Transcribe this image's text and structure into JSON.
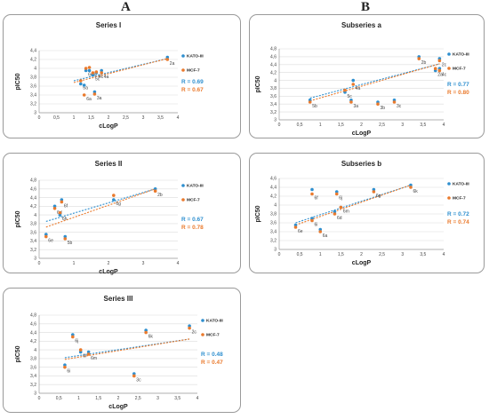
{
  "columns": {
    "left": "A",
    "right": "B"
  },
  "colors": {
    "kato": "#2e8fcf",
    "mcf": "#ea7a2d"
  },
  "legend": {
    "kato": "KATO-III",
    "mcf": "MCF-7"
  },
  "chart_data": [
    {
      "type": "scatter",
      "title": "Series I",
      "xlabel": "cLogP",
      "ylabel": "pIC50",
      "xlim": [
        0,
        4
      ],
      "ylim": [
        3,
        4.4
      ],
      "xticks": [
        "0",
        "0,5",
        "1",
        "1,5",
        "2",
        "2,5",
        "3",
        "3,5",
        "4"
      ],
      "yticks": [
        "3",
        "3,2",
        "3,4",
        "3,6",
        "3,8",
        "4",
        "4,2",
        "4,4"
      ],
      "r_kato": "R = 0.69",
      "r_mcf": "R = 0.67",
      "points": [
        {
          "label": "2a",
          "x": 3.7,
          "kato": 4.25,
          "mcf": 4.2
        },
        {
          "label": "4a",
          "x": 1.8,
          "kato": 3.95,
          "mcf": 3.9
        },
        {
          "label": "6d",
          "x": 1.35,
          "kato": 3.95,
          "mcf": 4.0
        },
        {
          "label": "5d",
          "x": 1.45,
          "kato": 3.95,
          "mcf": 4.02
        },
        {
          "label": "5c",
          "x": 1.55,
          "kato": 3.85,
          "mcf": 3.9
        },
        {
          "label": "4c",
          "x": 1.65,
          "kato": 3.9,
          "mcf": 3.92
        },
        {
          "label": "5a",
          "x": 1.2,
          "kato": 3.65,
          "mcf": 3.72
        },
        {
          "label": "6a",
          "x": 1.3,
          "kato": 3.62,
          "mcf": 3.4
        },
        {
          "label": "3a",
          "x": 1.6,
          "kato": 3.47,
          "mcf": 3.42
        }
      ],
      "trend_kato": [
        [
          1.0,
          3.72
        ],
        [
          3.7,
          4.22
        ]
      ],
      "trend_mcf": [
        [
          1.0,
          3.68
        ],
        [
          3.7,
          4.22
        ]
      ]
    },
    {
      "type": "scatter",
      "title": "Series II",
      "xlabel": "cLogP",
      "ylabel": "pIC50",
      "xlim": [
        0,
        4
      ],
      "ylim": [
        3,
        4.8
      ],
      "xticks": [
        "0",
        "1",
        "2",
        "3",
        "4"
      ],
      "yticks": [
        "3",
        "3,2",
        "3,4",
        "3,6",
        "3,8",
        "4",
        "4,2",
        "4,4",
        "4,6",
        "4,8"
      ],
      "r_kato": "R = 0.67",
      "r_mcf": "R = 0.78",
      "points": [
        {
          "label": "2b",
          "x": 3.35,
          "kato": 4.6,
          "mcf": 4.55
        },
        {
          "label": "6g",
          "x": 2.15,
          "kato": 4.35,
          "mcf": 4.45
        },
        {
          "label": "6f",
          "x": 0.65,
          "kato": 4.35,
          "mcf": 4.3
        },
        {
          "label": "6d",
          "x": 0.45,
          "kato": 4.2,
          "mcf": 4.15
        },
        {
          "label": "6h",
          "x": 0.6,
          "kato": 4.0,
          "mcf": 4.05
        },
        {
          "label": "6e",
          "x": 0.2,
          "kato": 3.55,
          "mcf": 3.5
        },
        {
          "label": "5b",
          "x": 0.75,
          "kato": 3.5,
          "mcf": 3.45
        }
      ],
      "trend_kato": [
        [
          0.2,
          3.85
        ],
        [
          3.35,
          4.6
        ]
      ],
      "trend_mcf": [
        [
          0.2,
          3.72
        ],
        [
          3.35,
          4.6
        ]
      ]
    },
    {
      "type": "scatter",
      "title": "Series III",
      "xlabel": "cLogP",
      "ylabel": "pIC50",
      "xlim": [
        0,
        4
      ],
      "ylim": [
        3,
        4.8
      ],
      "xticks": [
        "0",
        "0,5",
        "1",
        "1,5",
        "2",
        "2,5",
        "3",
        "3,5",
        "4"
      ],
      "yticks": [
        "3",
        "3,2",
        "3,4",
        "3,6",
        "3,8",
        "4",
        "4,2",
        "4,4",
        "4,6",
        "4,8"
      ],
      "r_kato": "R = 0.48",
      "r_mcf": "R = 0.47",
      "points": [
        {
          "label": "2c",
          "x": 3.8,
          "kato": 4.55,
          "mcf": 4.5
        },
        {
          "label": "6k",
          "x": 2.7,
          "kato": 4.45,
          "mcf": 4.4
        },
        {
          "label": "6j",
          "x": 0.85,
          "kato": 4.35,
          "mcf": 4.3
        },
        {
          "label": "6l",
          "x": 1.05,
          "kato": 3.95,
          "mcf": 4.0
        },
        {
          "label": "6m",
          "x": 1.25,
          "kato": 3.95,
          "mcf": 3.9
        },
        {
          "label": "6i",
          "x": 0.65,
          "kato": 3.65,
          "mcf": 3.6
        },
        {
          "label": "3c",
          "x": 2.4,
          "kato": 3.45,
          "mcf": 3.4
        }
      ],
      "trend_kato": [
        [
          0.65,
          3.82
        ],
        [
          3.8,
          4.25
        ]
      ],
      "trend_mcf": [
        [
          0.65,
          3.78
        ],
        [
          3.8,
          4.25
        ]
      ]
    },
    {
      "type": "scatter",
      "title": "Subseries a",
      "xlabel": "cLogP",
      "ylabel": "pIC50",
      "xlim": [
        0,
        4
      ],
      "ylim": [
        3,
        4.8
      ],
      "xticks": [
        "0",
        "0,5",
        "1",
        "1,5",
        "2",
        "2,5",
        "3",
        "3,5",
        "4"
      ],
      "yticks": [
        "3",
        "3,2",
        "3,4",
        "3,6",
        "3,8",
        "4",
        "4,2",
        "4,4",
        "4,6",
        "4,8"
      ],
      "r_kato": "R = 0.77",
      "r_mcf": "R = 0.80",
      "points": [
        {
          "label": "2c",
          "x": 3.9,
          "kato": 4.55,
          "mcf": 4.5
        },
        {
          "label": "2b",
          "x": 3.4,
          "kato": 4.6,
          "mcf": 4.55
        },
        {
          "label": "2a",
          "x": 3.8,
          "kato": 4.25,
          "mcf": 4.3
        },
        {
          "label": "4c",
          "x": 3.9,
          "kato": 4.3,
          "mcf": 4.25
        },
        {
          "label": "4a",
          "x": 1.8,
          "kato": 4.0,
          "mcf": 3.9
        },
        {
          "label": "5c",
          "x": 1.6,
          "kato": 3.7,
          "mcf": 3.75
        },
        {
          "label": "5b",
          "x": 0.75,
          "kato": 3.5,
          "mcf": 3.45
        },
        {
          "label": "3a",
          "x": 1.75,
          "kato": 3.5,
          "mcf": 3.45
        },
        {
          "label": "3b",
          "x": 2.4,
          "kato": 3.45,
          "mcf": 3.4
        },
        {
          "label": "3c",
          "x": 2.8,
          "kato": 3.5,
          "mcf": 3.45
        }
      ],
      "trend_kato": [
        [
          0.75,
          3.55
        ],
        [
          3.9,
          4.42
        ]
      ],
      "trend_mcf": [
        [
          0.75,
          3.48
        ],
        [
          3.9,
          4.42
        ]
      ]
    },
    {
      "type": "scatter",
      "title": "Subseries b",
      "xlabel": "cLogP",
      "ylabel": "pIC50",
      "xlim": [
        0,
        4
      ],
      "ylim": [
        3,
        4.6
      ],
      "xticks": [
        "0",
        "0,5",
        "1",
        "1,5",
        "2",
        "2,5",
        "3",
        "3,5",
        "4"
      ],
      "yticks": [
        "3",
        "3,2",
        "3,4",
        "3,6",
        "3,8",
        "4",
        "4,2",
        "4,4",
        "4,6"
      ],
      "r_kato": "R = 0.72",
      "r_mcf": "R = 0.74",
      "points": [
        {
          "label": "6k",
          "x": 3.2,
          "kato": 4.45,
          "mcf": 4.4
        },
        {
          "label": "6g",
          "x": 2.3,
          "kato": 4.35,
          "mcf": 4.3
        },
        {
          "label": "6f",
          "x": 0.8,
          "kato": 4.35,
          "mcf": 4.25
        },
        {
          "label": "6j",
          "x": 1.4,
          "kato": 4.3,
          "mcf": 4.25
        },
        {
          "label": "6m",
          "x": 1.5,
          "kato": 3.95,
          "mcf": 3.95
        },
        {
          "label": "6d",
          "x": 1.35,
          "kato": 3.85,
          "mcf": 3.8
        },
        {
          "label": "6i",
          "x": 0.8,
          "kato": 3.7,
          "mcf": 3.65
        },
        {
          "label": "6a",
          "x": 1.0,
          "kato": 3.45,
          "mcf": 3.4
        },
        {
          "label": "6e",
          "x": 0.4,
          "kato": 3.55,
          "mcf": 3.5
        }
      ],
      "trend_kato": [
        [
          0.4,
          3.6
        ],
        [
          3.2,
          4.45
        ]
      ],
      "trend_mcf": [
        [
          0.4,
          3.55
        ],
        [
          3.2,
          4.45
        ]
      ]
    }
  ]
}
